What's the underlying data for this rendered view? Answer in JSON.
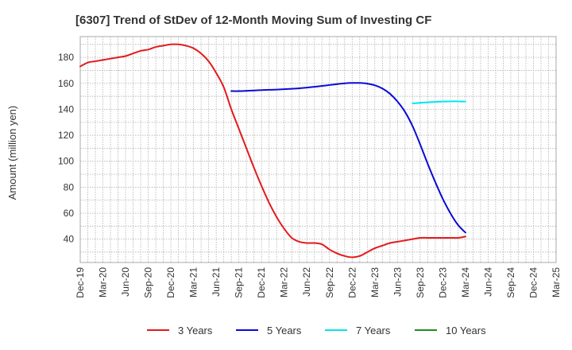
{
  "chart_data": {
    "type": "line",
    "title": "[6307]  Trend of StDev of 12-Month Moving Sum of Investing CF",
    "xlabel": "",
    "ylabel": "Amount (million yen)",
    "ylim": [
      22,
      196
    ],
    "yticks": [
      40,
      60,
      80,
      100,
      120,
      140,
      160,
      180
    ],
    "x_ticks": [
      "Dec-19",
      "Mar-20",
      "Jun-20",
      "Sep-20",
      "Dec-20",
      "Mar-21",
      "Jun-21",
      "Sep-21",
      "Dec-21",
      "Mar-22",
      "Jun-22",
      "Sep-22",
      "Dec-22",
      "Mar-23",
      "Jun-23",
      "Sep-23",
      "Dec-23",
      "Mar-24",
      "Jun-24",
      "Sep-24",
      "Dec-24",
      "Mar-25"
    ],
    "grid": true,
    "legend_position": "bottom",
    "series": [
      {
        "name": "3 Years",
        "color": "#e31a1c",
        "points": [
          [
            "2019-12",
            173
          ],
          [
            "2020-01",
            176
          ],
          [
            "2020-02",
            177
          ],
          [
            "2020-03",
            178
          ],
          [
            "2020-04",
            179
          ],
          [
            "2020-05",
            180
          ],
          [
            "2020-06",
            181
          ],
          [
            "2020-07",
            183
          ],
          [
            "2020-08",
            185
          ],
          [
            "2020-09",
            186
          ],
          [
            "2020-10",
            188
          ],
          [
            "2020-11",
            189
          ],
          [
            "2020-12",
            190
          ],
          [
            "2021-01",
            190
          ],
          [
            "2021-02",
            189
          ],
          [
            "2021-03",
            187
          ],
          [
            "2021-04",
            183
          ],
          [
            "2021-05",
            177
          ],
          [
            "2021-06",
            168
          ],
          [
            "2021-07",
            157
          ],
          [
            "2021-08",
            140
          ],
          [
            "2021-09",
            125
          ],
          [
            "2021-10",
            110
          ],
          [
            "2021-11",
            95
          ],
          [
            "2021-12",
            81
          ],
          [
            "2022-01",
            68
          ],
          [
            "2022-02",
            57
          ],
          [
            "2022-03",
            48
          ],
          [
            "2022-04",
            41
          ],
          [
            "2022-05",
            38
          ],
          [
            "2022-06",
            37
          ],
          [
            "2022-07",
            37
          ],
          [
            "2022-08",
            36
          ],
          [
            "2022-09",
            32
          ],
          [
            "2022-10",
            29
          ],
          [
            "2022-11",
            27
          ],
          [
            "2022-12",
            26
          ],
          [
            "2023-01",
            27
          ],
          [
            "2023-02",
            30
          ],
          [
            "2023-03",
            33
          ],
          [
            "2023-04",
            35
          ],
          [
            "2023-05",
            37
          ],
          [
            "2023-06",
            38
          ],
          [
            "2023-07",
            39
          ],
          [
            "2023-08",
            40
          ],
          [
            "2023-09",
            41
          ],
          [
            "2023-10",
            41
          ],
          [
            "2023-11",
            41
          ],
          [
            "2023-12",
            41
          ],
          [
            "2024-01",
            41
          ],
          [
            "2024-02",
            41
          ],
          [
            "2024-03",
            42
          ]
        ]
      },
      {
        "name": "5 Years",
        "color": "#0a0ad6",
        "points": [
          [
            "2021-08",
            154
          ],
          [
            "2021-09",
            154
          ],
          [
            "2021-10",
            154.2
          ],
          [
            "2021-11",
            154.5
          ],
          [
            "2021-12",
            154.8
          ],
          [
            "2022-01",
            155
          ],
          [
            "2022-02",
            155.2
          ],
          [
            "2022-03",
            155.5
          ],
          [
            "2022-04",
            155.8
          ],
          [
            "2022-05",
            156.2
          ],
          [
            "2022-06",
            156.7
          ],
          [
            "2022-07",
            157.3
          ],
          [
            "2022-08",
            158
          ],
          [
            "2022-09",
            158.7
          ],
          [
            "2022-10",
            159.4
          ],
          [
            "2022-11",
            160
          ],
          [
            "2022-12",
            160.3
          ],
          [
            "2023-01",
            160.3
          ],
          [
            "2023-02",
            159.8
          ],
          [
            "2023-03",
            158.5
          ],
          [
            "2023-04",
            156
          ],
          [
            "2023-05",
            152
          ],
          [
            "2023-06",
            146
          ],
          [
            "2023-07",
            138
          ],
          [
            "2023-08",
            127
          ],
          [
            "2023-09",
            113
          ],
          [
            "2023-10",
            98
          ],
          [
            "2023-11",
            84
          ],
          [
            "2023-12",
            71
          ],
          [
            "2024-01",
            60
          ],
          [
            "2024-02",
            51
          ],
          [
            "2024-03",
            45
          ]
        ]
      },
      {
        "name": "7 Years",
        "color": "#00e5ee",
        "points": [
          [
            "2023-08",
            144.5
          ],
          [
            "2023-09",
            145
          ],
          [
            "2023-10",
            145.4
          ],
          [
            "2023-11",
            145.7
          ],
          [
            "2023-12",
            146
          ],
          [
            "2024-01",
            146.1
          ],
          [
            "2024-02",
            146.1
          ],
          [
            "2024-03",
            146
          ]
        ]
      },
      {
        "name": "10 Years",
        "color": "#1e8c1e",
        "points": []
      }
    ]
  }
}
